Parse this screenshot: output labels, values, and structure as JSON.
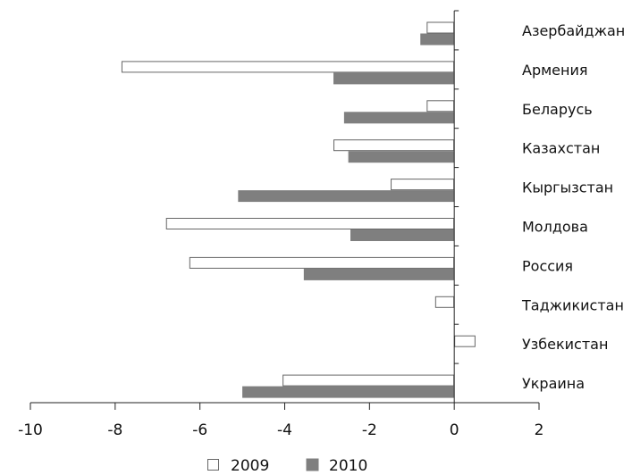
{
  "chart_data": {
    "type": "bar",
    "orientation": "horizontal",
    "categories": [
      "Азербайджан",
      "Армения",
      "Беларусь",
      "Казахстан",
      "Кыргызстан",
      "Молдова",
      "Россия",
      "Таджикистан",
      "Узбекистан",
      "Украина"
    ],
    "series": [
      {
        "name": "2009",
        "values": [
          -0.65,
          -7.85,
          -0.65,
          -2.85,
          -1.5,
          -6.8,
          -6.25,
          -0.45,
          0.5,
          -4.05
        ],
        "fill": "#ffffff",
        "stroke": "#666666"
      },
      {
        "name": "2010",
        "values": [
          -0.8,
          -2.85,
          -2.6,
          -2.5,
          -5.1,
          -2.45,
          -3.55,
          null,
          null,
          -5.0
        ],
        "fill": "#7f7f7f",
        "stroke": "#7f7f7f"
      }
    ],
    "title": "",
    "xlabel": "",
    "ylabel": "",
    "xlim": [
      -10,
      2
    ],
    "xticks": [
      -10,
      -8,
      -6,
      -4,
      -2,
      0,
      2
    ],
    "xtick_labels": [
      "-10",
      "-8",
      "-6",
      "-4",
      "-2",
      "0",
      "2"
    ],
    "category_labels_side": "right",
    "grid": false,
    "legend_position": "bottom-center"
  }
}
